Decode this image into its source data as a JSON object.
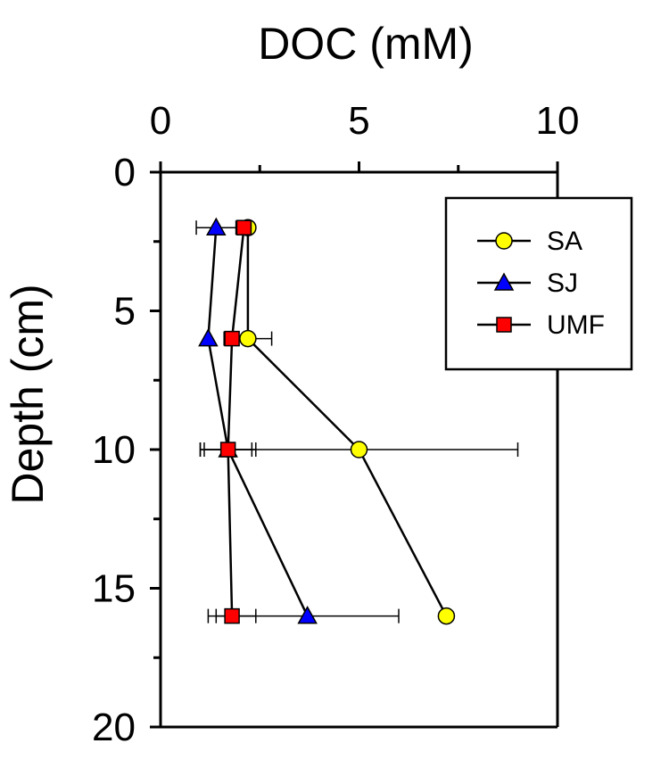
{
  "chart_data": {
    "type": "line",
    "xlabel": "DOC (mM)",
    "ylabel": "Depth (cm)",
    "xlim": [
      0,
      10
    ],
    "ylim": [
      0,
      20
    ],
    "y_inverted": true,
    "x_axis_position": "top",
    "x_ticks": [
      0,
      5,
      10
    ],
    "x_minor_ticks": [
      2.5,
      7.5
    ],
    "y_ticks": [
      0,
      5,
      10,
      15,
      20
    ],
    "y_minor_ticks": [
      2.5,
      7.5,
      12.5,
      17.5
    ],
    "grid": false,
    "legend_position": "top-right",
    "series": [
      {
        "name": "SA",
        "marker": "circle",
        "color": "#ffff00",
        "points": [
          {
            "depth": 2,
            "doc": 2.2,
            "err": 0.1
          },
          {
            "depth": 6,
            "doc": 2.2,
            "err": 0.6
          },
          {
            "depth": 10,
            "doc": 5.0,
            "err": 4.0
          },
          {
            "depth": 16,
            "doc": 7.2,
            "err": 0
          }
        ]
      },
      {
        "name": "SJ",
        "marker": "triangle",
        "color": "#0000ff",
        "points": [
          {
            "depth": 2,
            "doc": 1.4,
            "err": 0.5
          },
          {
            "depth": 6,
            "doc": 1.2,
            "err": 0
          },
          {
            "depth": 10,
            "doc": 1.7,
            "err": 0.6
          },
          {
            "depth": 16,
            "doc": 3.7,
            "err": 2.3
          }
        ]
      },
      {
        "name": "UMF",
        "marker": "square",
        "color": "#ff0000",
        "points": [
          {
            "depth": 2,
            "doc": 2.1,
            "err": 0
          },
          {
            "depth": 6,
            "doc": 1.8,
            "err": 0
          },
          {
            "depth": 10,
            "doc": 1.7,
            "err": 0.7
          },
          {
            "depth": 16,
            "doc": 1.8,
            "err": 0.6
          }
        ]
      }
    ]
  }
}
